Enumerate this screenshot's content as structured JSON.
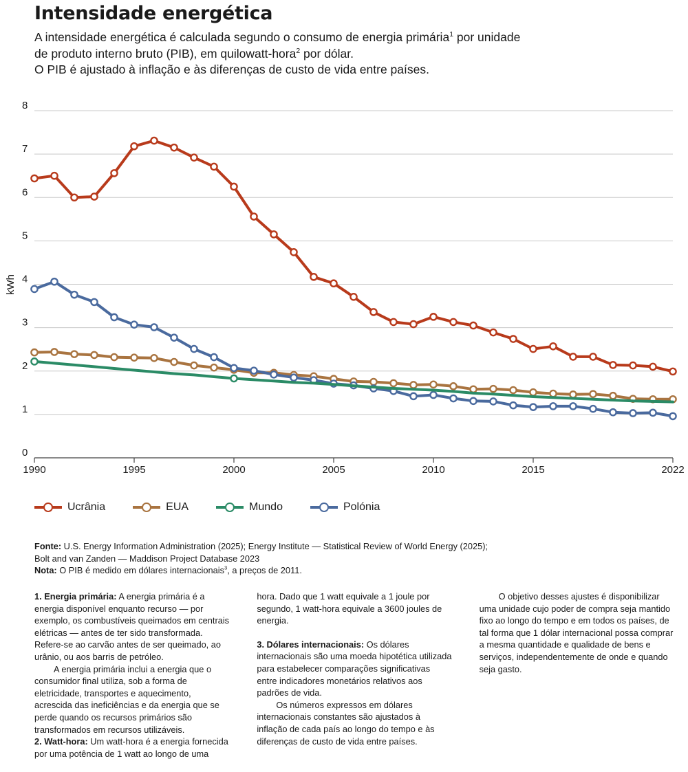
{
  "header": {
    "title": "Intensidade energética",
    "subtitle_line1": "A intensidade energética é calculada segundo o consumo de energia primária",
    "subtitle_sup1": "1",
    "subtitle_line1_end": " por unidade",
    "subtitle_line2": "de produto interno bruto (PIB), em quilowatt-hora",
    "subtitle_sup2": "2",
    "subtitle_line2_end": " por dólar.",
    "subtitle_line3": "O PIB é ajustado à inflação e às diferenças de custo de vida entre países."
  },
  "chart_data": {
    "type": "line",
    "title": "Intensidade energética",
    "xlabel": "",
    "ylabel": "kWh",
    "xlim": [
      1990,
      2022
    ],
    "ylim": [
      0,
      8
    ],
    "x_ticks": [
      1990,
      1995,
      2000,
      2005,
      2010,
      2015,
      2022
    ],
    "y_ticks": [
      0,
      1,
      2,
      3,
      4,
      5,
      6,
      7,
      8
    ],
    "grid": true,
    "legend_position": "bottom-left",
    "series": [
      {
        "name": "Ucrânia",
        "color": "#b83a1b",
        "x": [
          1990,
          1991,
          1992,
          1993,
          1994,
          1995,
          1996,
          1997,
          1998,
          1999,
          2000,
          2001,
          2002,
          2003,
          2004,
          2005,
          2006,
          2007,
          2008,
          2009,
          2010,
          2011,
          2012,
          2013,
          2014,
          2015,
          2016,
          2017,
          2018,
          2019,
          2020,
          2021,
          2022
        ],
        "values": [
          6.44,
          6.5,
          6.0,
          6.02,
          6.56,
          7.18,
          7.31,
          7.15,
          6.92,
          6.71,
          6.25,
          5.56,
          5.15,
          4.74,
          4.17,
          4.02,
          3.71,
          3.36,
          3.13,
          3.08,
          3.25,
          3.13,
          3.05,
          2.89,
          2.74,
          2.51,
          2.57,
          2.33,
          2.33,
          2.14,
          2.13,
          2.1,
          1.99
        ],
        "markers": true
      },
      {
        "name": "EUA",
        "color": "#a97440",
        "x": [
          1990,
          1991,
          1992,
          1993,
          1994,
          1995,
          1996,
          1997,
          1998,
          1999,
          2000,
          2001,
          2002,
          2003,
          2004,
          2005,
          2006,
          2007,
          2008,
          2009,
          2010,
          2011,
          2012,
          2013,
          2014,
          2015,
          2016,
          2017,
          2018,
          2019,
          2020,
          2021,
          2022
        ],
        "values": [
          2.43,
          2.44,
          2.39,
          2.37,
          2.32,
          2.31,
          2.3,
          2.21,
          2.13,
          2.08,
          2.03,
          1.96,
          1.96,
          1.91,
          1.88,
          1.82,
          1.76,
          1.75,
          1.72,
          1.68,
          1.69,
          1.65,
          1.58,
          1.59,
          1.56,
          1.51,
          1.48,
          1.46,
          1.47,
          1.43,
          1.36,
          1.35,
          1.35
        ],
        "markers": true
      },
      {
        "name": "Mundo",
        "color": "#2b8b66",
        "x": [
          1990,
          1991,
          1992,
          1993,
          1994,
          1995,
          1996,
          1997,
          1998,
          1999,
          2000,
          2001,
          2002,
          2003,
          2004,
          2005,
          2006,
          2007,
          2008,
          2009,
          2010,
          2011,
          2012,
          2013,
          2014,
          2015,
          2016,
          2017,
          2018,
          2019,
          2020,
          2021,
          2022
        ],
        "values": [
          2.22,
          2.18,
          2.14,
          2.1,
          2.06,
          2.02,
          1.98,
          1.94,
          1.91,
          1.87,
          1.83,
          1.8,
          1.77,
          1.74,
          1.72,
          1.69,
          1.66,
          1.63,
          1.6,
          1.58,
          1.56,
          1.53,
          1.49,
          1.47,
          1.44,
          1.41,
          1.39,
          1.37,
          1.35,
          1.33,
          1.31,
          1.3,
          1.29
        ],
        "markers": false,
        "marker_x": [
          1990,
          2000
        ]
      },
      {
        "name": "Polónia",
        "color": "#4a6a9e",
        "x": [
          1990,
          1991,
          1992,
          1993,
          1994,
          1995,
          1996,
          1997,
          1998,
          1999,
          2000,
          2001,
          2002,
          2003,
          2004,
          2005,
          2006,
          2007,
          2008,
          2009,
          2010,
          2011,
          2012,
          2013,
          2014,
          2015,
          2016,
          2017,
          2018,
          2019,
          2020,
          2021,
          2022
        ],
        "values": [
          3.89,
          4.06,
          3.76,
          3.59,
          3.24,
          3.07,
          3.01,
          2.77,
          2.51,
          2.32,
          2.07,
          2.01,
          1.92,
          1.85,
          1.79,
          1.71,
          1.67,
          1.6,
          1.54,
          1.42,
          1.45,
          1.37,
          1.31,
          1.3,
          1.21,
          1.17,
          1.19,
          1.19,
          1.13,
          1.05,
          1.03,
          1.04,
          0.96
        ],
        "markers": true
      }
    ]
  },
  "source": {
    "label": "Fonte:",
    "text1": " U.S. Energy Information Administration (2025); Energy Institute — Statistical Review of World Energy (2025);",
    "text2": "Bolt and van Zanden — Maddison Project Database 2023",
    "note_label": "Nota:",
    "note_text": " O PIB é medido em dólares internacionais",
    "note_sup": "3",
    "note_end": ", a preços de 2011."
  },
  "notes": {
    "n1_label": "1. Energia primária:",
    "n1_p1": " A energia primária é a energia disponível enquanto recurso — por exemplo, os combustíveis queimados em centrais elétricas — antes de ter sido transformada. Refere-se ao carvão antes de ser queimado, ao urânio, ou aos barris de petróleo.",
    "n1_p2": "A energia primária inclui a energia que o consumidor final utiliza, sob a forma de eletricidade, transportes e aquecimento, acrescida das ineficiências e da energia que se perde quando os recursos primários são transformados em recursos utilizáveis.",
    "n2_label": "2. Watt-hora:",
    "n2_text": " Um watt-hora é a energia fornecida por uma potência de 1 watt ao longo de uma hora. Dado que 1 watt equivale a 1 joule por segundo, 1 watt-hora equivale a 3600 joules de energia.",
    "n3_label": "3. Dólares internacionais:",
    "n3_p1": " Os dólares internacionais são uma moeda hipotética utilizada para estabelecer comparações significativas entre indicadores monetários relativos aos padrões de vida.",
    "n3_p2": "Os números expressos em dólares internacionais constantes são ajustados à inflação de cada país ao longo do tempo e às diferenças de custo de vida entre países.",
    "n3_p3": "O objetivo desses ajustes é disponibilizar uma unidade cujo poder de compra seja mantido fixo ao longo do tempo e em todos os países, de tal forma que 1 dólar internacional possa comprar a mesma quantidade e qualidade de bens e serviços, independentemente de onde e quando seja gasto."
  }
}
